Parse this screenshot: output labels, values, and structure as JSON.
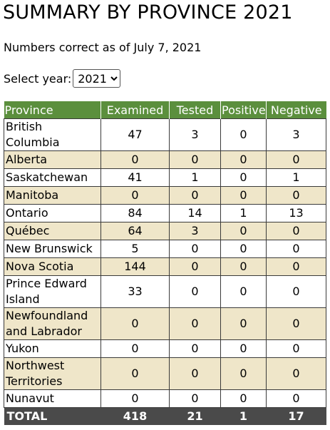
{
  "page": {
    "title": "SUMMARY BY PROVINCE 2021",
    "updated_note": "Numbers correct as of July 7, 2021"
  },
  "year_select": {
    "label": "Select year:",
    "value": "2021",
    "options": [
      "2021"
    ]
  },
  "table": {
    "headers": [
      "Province",
      "Examined",
      "Tested",
      "Positive",
      "Negative"
    ],
    "rows": [
      {
        "province": "British Columbia",
        "examined": "47",
        "tested": "3",
        "positive": "0",
        "negative": "3"
      },
      {
        "province": "Alberta",
        "examined": "0",
        "tested": "0",
        "positive": "0",
        "negative": "0"
      },
      {
        "province": "Saskatchewan",
        "examined": "41",
        "tested": "1",
        "positive": "0",
        "negative": "1"
      },
      {
        "province": "Manitoba",
        "examined": "0",
        "tested": "0",
        "positive": "0",
        "negative": "0"
      },
      {
        "province": "Ontario",
        "examined": "84",
        "tested": "14",
        "positive": "1",
        "negative": "13"
      },
      {
        "province": "Québec",
        "examined": "64",
        "tested": "3",
        "positive": "0",
        "negative": "0"
      },
      {
        "province": "New Brunswick",
        "examined": "5",
        "tested": "0",
        "positive": "0",
        "negative": "0"
      },
      {
        "province": "Nova Scotia",
        "examined": "144",
        "tested": "0",
        "positive": "0",
        "negative": "0"
      },
      {
        "province": "Prince Edward Island",
        "examined": "33",
        "tested": "0",
        "positive": "0",
        "negative": "0"
      },
      {
        "province": "Newfoundland and Labrador",
        "examined": "0",
        "tested": "0",
        "positive": "0",
        "negative": "0"
      },
      {
        "province": "Yukon",
        "examined": "0",
        "tested": "0",
        "positive": "0",
        "negative": "0"
      },
      {
        "province": "Northwest Territories",
        "examined": "0",
        "tested": "0",
        "positive": "0",
        "negative": "0"
      },
      {
        "province": "Nunavut",
        "examined": "0",
        "tested": "0",
        "positive": "0",
        "negative": "0"
      }
    ],
    "total": {
      "label": "TOTAL",
      "examined": "418",
      "tested": "21",
      "positive": "1",
      "negative": "17"
    }
  },
  "colors": {
    "header_bg": "#5b8f3d",
    "row_alt_bg": "#efe6c9",
    "total_bg": "#4a4a4a"
  }
}
